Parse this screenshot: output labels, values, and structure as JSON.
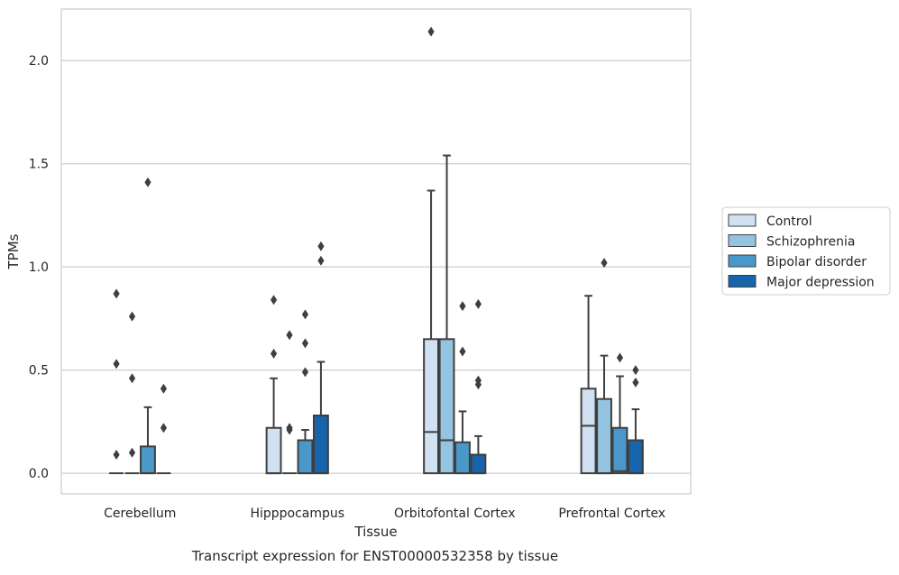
{
  "chart_data": {
    "type": "box",
    "xlabel": "Tissue",
    "ylabel": "TPMs",
    "caption": "Transcript expression for ENST00000532358 by tissue",
    "ylim": [
      -0.1,
      2.25
    ],
    "yticks": [
      0.0,
      0.5,
      1.0,
      1.5,
      2.0
    ],
    "ytick_labels": [
      "0.0",
      "0.5",
      "1.0",
      "1.5",
      "2.0"
    ],
    "grid": "horizontal",
    "legend_position": "right",
    "categories": [
      "Cerebellum",
      "Hipppocampus",
      "Orbitofontal Cortex",
      "Prefrontal Cortex"
    ],
    "series": [
      {
        "name": "Control",
        "color": "#d0e1f2",
        "boxes": [
          {
            "min": 0.0,
            "q1": 0.0,
            "median": 0.0,
            "q3": 0.0,
            "max": 0.0,
            "outliers": [
              0.09,
              0.53,
              0.87
            ]
          },
          {
            "min": 0.0,
            "q1": 0.0,
            "median": 0.0,
            "q3": 0.22,
            "max": 0.46,
            "outliers": [
              0.58,
              0.84
            ]
          },
          {
            "min": 0.0,
            "q1": 0.0,
            "median": 0.2,
            "q3": 0.65,
            "max": 1.37,
            "outliers": [
              2.14
            ]
          },
          {
            "min": 0.0,
            "q1": 0.0,
            "median": 0.23,
            "q3": 0.41,
            "max": 0.86,
            "outliers": []
          }
        ]
      },
      {
        "name": "Schizophrenia",
        "color": "#94c4df",
        "boxes": [
          {
            "min": 0.0,
            "q1": 0.0,
            "median": 0.0,
            "q3": 0.0,
            "max": 0.0,
            "outliers": [
              0.1,
              0.46,
              0.76
            ]
          },
          {
            "min": 0.0,
            "q1": 0.0,
            "median": 0.0,
            "q3": 0.0,
            "max": 0.0,
            "outliers": [
              0.21,
              0.22,
              0.67
            ]
          },
          {
            "min": 0.0,
            "q1": 0.0,
            "median": 0.16,
            "q3": 0.65,
            "max": 1.54,
            "outliers": []
          },
          {
            "min": 0.0,
            "q1": 0.0,
            "median": 0.0,
            "q3": 0.36,
            "max": 0.57,
            "outliers": [
              1.02
            ]
          }
        ]
      },
      {
        "name": "Bipolar disorder",
        "color": "#4a98c9",
        "boxes": [
          {
            "min": 0.0,
            "q1": 0.0,
            "median": 0.0,
            "q3": 0.13,
            "max": 0.32,
            "outliers": [
              1.41
            ]
          },
          {
            "min": 0.0,
            "q1": 0.0,
            "median": 0.0,
            "q3": 0.16,
            "max": 0.21,
            "outliers": [
              0.49,
              0.63,
              0.77
            ]
          },
          {
            "min": 0.0,
            "q1": 0.0,
            "median": 0.0,
            "q3": 0.15,
            "max": 0.3,
            "outliers": [
              0.59,
              0.81
            ]
          },
          {
            "min": 0.0,
            "q1": 0.0,
            "median": 0.01,
            "q3": 0.22,
            "max": 0.47,
            "outliers": [
              0.56
            ]
          }
        ]
      },
      {
        "name": "Major depression",
        "color": "#1764ab",
        "boxes": [
          {
            "min": 0.0,
            "q1": 0.0,
            "median": 0.0,
            "q3": 0.0,
            "max": 0.0,
            "outliers": [
              0.22,
              0.41
            ]
          },
          {
            "min": 0.0,
            "q1": 0.0,
            "median": 0.0,
            "q3": 0.28,
            "max": 0.54,
            "outliers": [
              1.03,
              1.1
            ]
          },
          {
            "min": 0.0,
            "q1": 0.0,
            "median": 0.0,
            "q3": 0.09,
            "max": 0.18,
            "outliers": [
              0.43,
              0.45,
              0.82
            ]
          },
          {
            "min": 0.0,
            "q1": 0.0,
            "median": 0.0,
            "q3": 0.16,
            "max": 0.31,
            "outliers": [
              0.44,
              0.5
            ]
          }
        ]
      }
    ]
  }
}
